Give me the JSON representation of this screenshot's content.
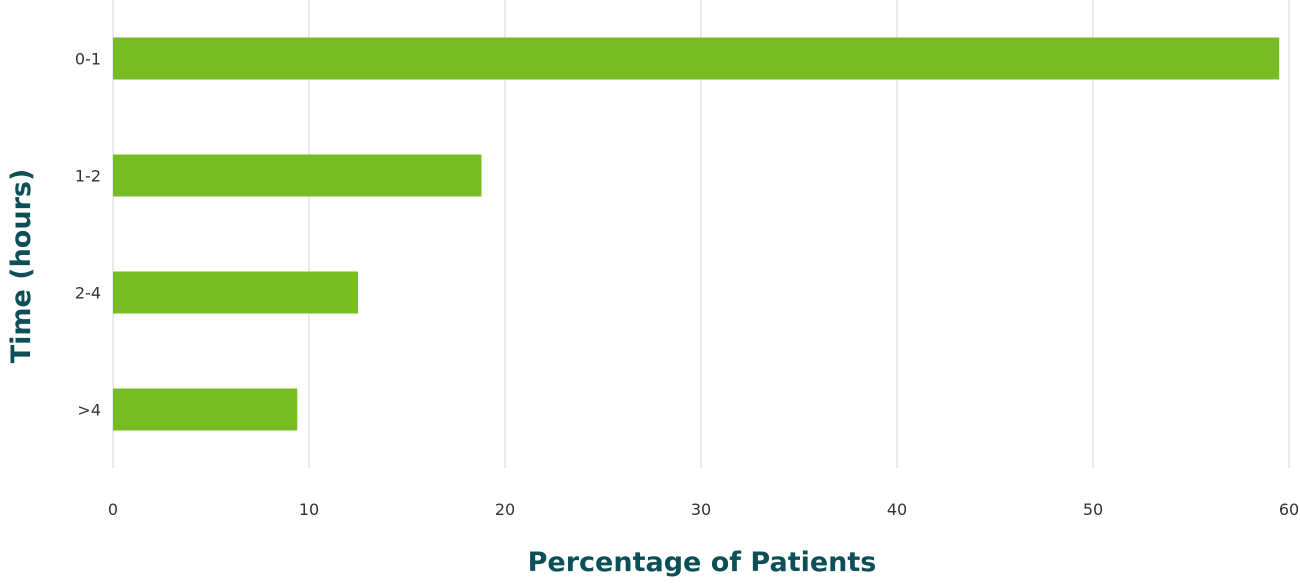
{
  "chart_data": {
    "type": "bar",
    "orientation": "horizontal",
    "categories": [
      "0-1",
      "1-2",
      "2-4",
      ">4"
    ],
    "values": [
      59.5,
      18.8,
      12.5,
      9.4
    ],
    "xlabel": "Percentage of Patients",
    "ylabel": "Time (hours)",
    "xlim": [
      0,
      60
    ],
    "x_ticks": [
      "0",
      "10",
      "20",
      "30",
      "40",
      "50",
      "60"
    ],
    "grid": "vertical",
    "legend": "none",
    "colors": {
      "bar": "#78bc23",
      "axis_title": "#0d4f57",
      "grid": "#d6d6d6"
    }
  }
}
